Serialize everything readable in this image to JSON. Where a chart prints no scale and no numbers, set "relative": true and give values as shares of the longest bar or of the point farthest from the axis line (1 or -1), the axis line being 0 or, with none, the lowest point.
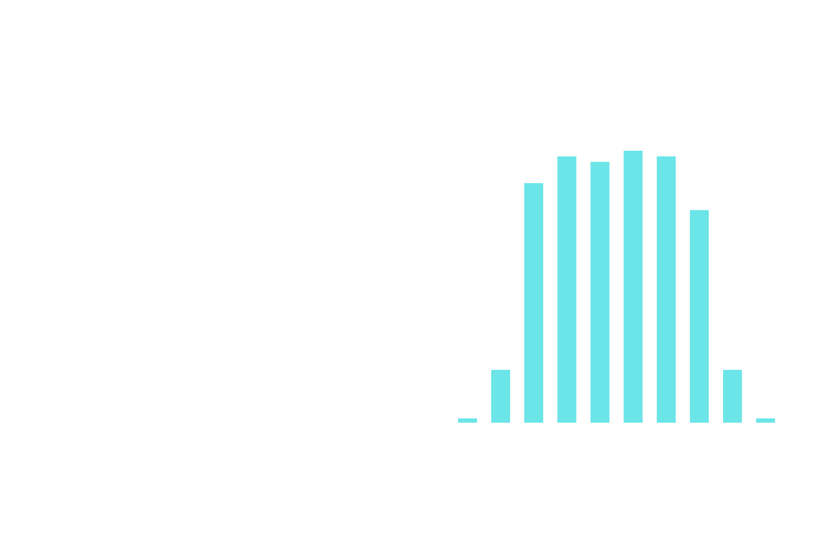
{
  "chart_data": {
    "type": "bar",
    "relative": true,
    "categories": [
      null,
      null,
      null,
      null,
      null,
      null,
      null,
      null,
      null,
      null
    ],
    "values": [
      0.016,
      0.194,
      0.881,
      0.979,
      0.959,
      1.0,
      0.979,
      0.782,
      0.194,
      0.016
    ],
    "color": "#6be5e8"
  }
}
